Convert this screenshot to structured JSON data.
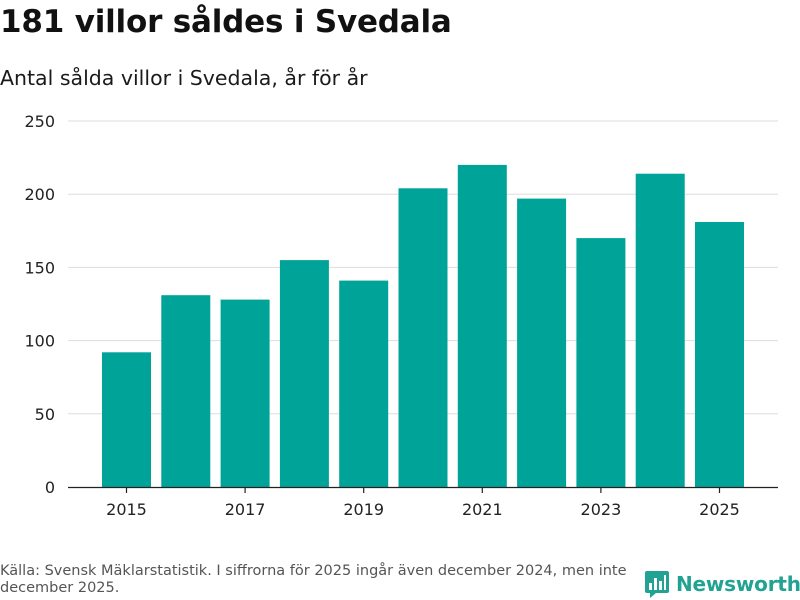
{
  "title": "181 villor såldes i Svedala",
  "subtitle": "Antal sålda villor i Svedala, år för år",
  "source": "Källa: Svensk Mäklarstatistik. I siffrorna för 2025 ingår även december 2024, men inte december 2025.",
  "brand": {
    "name": "Newsworthy",
    "icon": "newsworthy-logo-icon"
  },
  "colors": {
    "bar": "#00a398",
    "grid": "#dddddd",
    "axis": "#222222",
    "brand": "#21a293"
  },
  "chart_data": {
    "type": "bar",
    "title": "181 villor såldes i Svedala",
    "subtitle": "Antal sålda villor i Svedala, år för år",
    "xlabel": "",
    "ylabel": "",
    "categories": [
      2015,
      2016,
      2017,
      2018,
      2019,
      2020,
      2021,
      2022,
      2023,
      2024,
      2025
    ],
    "values": [
      92,
      131,
      128,
      155,
      141,
      204,
      220,
      197,
      170,
      214,
      181
    ],
    "ylim": [
      0,
      250
    ],
    "yticks": [
      0,
      50,
      100,
      150,
      200,
      250
    ],
    "xtick_labels": [
      "2015",
      "2017",
      "2019",
      "2021",
      "2023",
      "2025"
    ],
    "grid": true,
    "legend": false
  }
}
